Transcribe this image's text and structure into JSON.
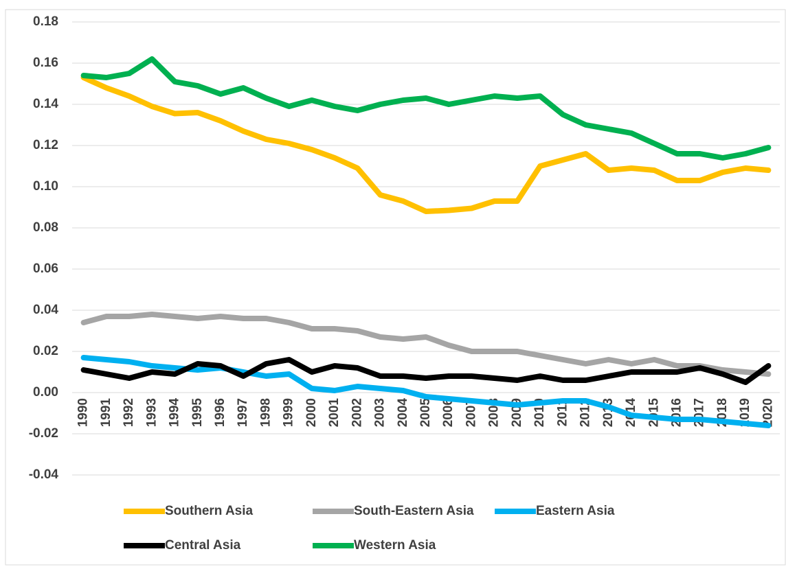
{
  "chart_data": {
    "type": "line",
    "categories": [
      "1990",
      "1991",
      "1992",
      "1993",
      "1994",
      "1995",
      "1996",
      "1997",
      "1998",
      "1999",
      "2000",
      "2001",
      "2002",
      "2003",
      "2004",
      "2005",
      "2006",
      "2007",
      "2008",
      "2009",
      "2010",
      "2011",
      "2012",
      "2013",
      "2014",
      "2015",
      "2016",
      "2017",
      "2018",
      "2019",
      "2020"
    ],
    "series": [
      {
        "name": "Southern Asia",
        "color": "#ffc000",
        "values": [
          0.153,
          0.148,
          0.144,
          0.139,
          0.1355,
          0.136,
          0.132,
          0.127,
          0.123,
          0.121,
          0.118,
          0.114,
          0.109,
          0.096,
          0.093,
          0.088,
          0.0885,
          0.0895,
          0.093,
          0.093,
          0.11,
          0.113,
          0.116,
          0.108,
          0.109,
          0.108,
          0.103,
          0.103,
          0.107,
          0.109,
          0.108
        ]
      },
      {
        "name": "South-Eastern Asia",
        "color": "#a5a5a5",
        "values": [
          0.034,
          0.037,
          0.037,
          0.038,
          0.037,
          0.036,
          0.037,
          0.036,
          0.036,
          0.034,
          0.031,
          0.031,
          0.03,
          0.027,
          0.026,
          0.027,
          0.023,
          0.02,
          0.02,
          0.02,
          0.018,
          0.016,
          0.014,
          0.016,
          0.014,
          0.016,
          0.013,
          0.013,
          0.011,
          0.01,
          0.009
        ]
      },
      {
        "name": "Eastern Asia",
        "color": "#00b0f0",
        "values": [
          0.017,
          0.016,
          0.015,
          0.013,
          0.012,
          0.011,
          0.012,
          0.01,
          0.008,
          0.009,
          0.002,
          0.001,
          0.003,
          0.002,
          0.001,
          -0.002,
          -0.003,
          -0.004,
          -0.005,
          -0.006,
          -0.005,
          -0.004,
          -0.004,
          -0.007,
          -0.011,
          -0.012,
          -0.013,
          -0.013,
          -0.014,
          -0.015,
          -0.016
        ]
      },
      {
        "name": "Central Asia",
        "color": "#000000",
        "values": [
          0.011,
          0.009,
          0.007,
          0.01,
          0.009,
          0.014,
          0.013,
          0.008,
          0.014,
          0.016,
          0.01,
          0.013,
          0.012,
          0.008,
          0.008,
          0.007,
          0.008,
          0.008,
          0.007,
          0.006,
          0.008,
          0.006,
          0.006,
          0.008,
          0.01,
          0.01,
          0.01,
          0.012,
          0.009,
          0.005,
          0.013
        ]
      },
      {
        "name": "Western Asia",
        "color": "#00b050",
        "values": [
          0.154,
          0.153,
          0.155,
          0.162,
          0.151,
          0.149,
          0.145,
          0.148,
          0.143,
          0.139,
          0.142,
          0.139,
          0.137,
          0.14,
          0.142,
          0.143,
          0.14,
          0.142,
          0.144,
          0.143,
          0.144,
          0.135,
          0.13,
          0.128,
          0.126,
          0.121,
          0.116,
          0.116,
          0.114,
          0.116,
          0.119
        ]
      }
    ],
    "ylim": [
      -0.04,
      0.18
    ],
    "yticks": [
      {
        "value": -0.04,
        "label": "-0.04"
      },
      {
        "value": -0.02,
        "label": "-0.02"
      },
      {
        "value": 0,
        "label": "0.00"
      },
      {
        "value": 0.02,
        "label": "0.02"
      },
      {
        "value": 0.04,
        "label": "0.04"
      },
      {
        "value": 0.06,
        "label": "0.06"
      },
      {
        "value": 0.08,
        "label": "0.08"
      },
      {
        "value": 0.1,
        "label": "0.10"
      },
      {
        "value": 0.12,
        "label": "0.12"
      },
      {
        "value": 0.14,
        "label": "0.14"
      },
      {
        "value": 0.16,
        "label": "0.16"
      },
      {
        "value": 0.18,
        "label": "0.18"
      }
    ],
    "grid": true
  }
}
